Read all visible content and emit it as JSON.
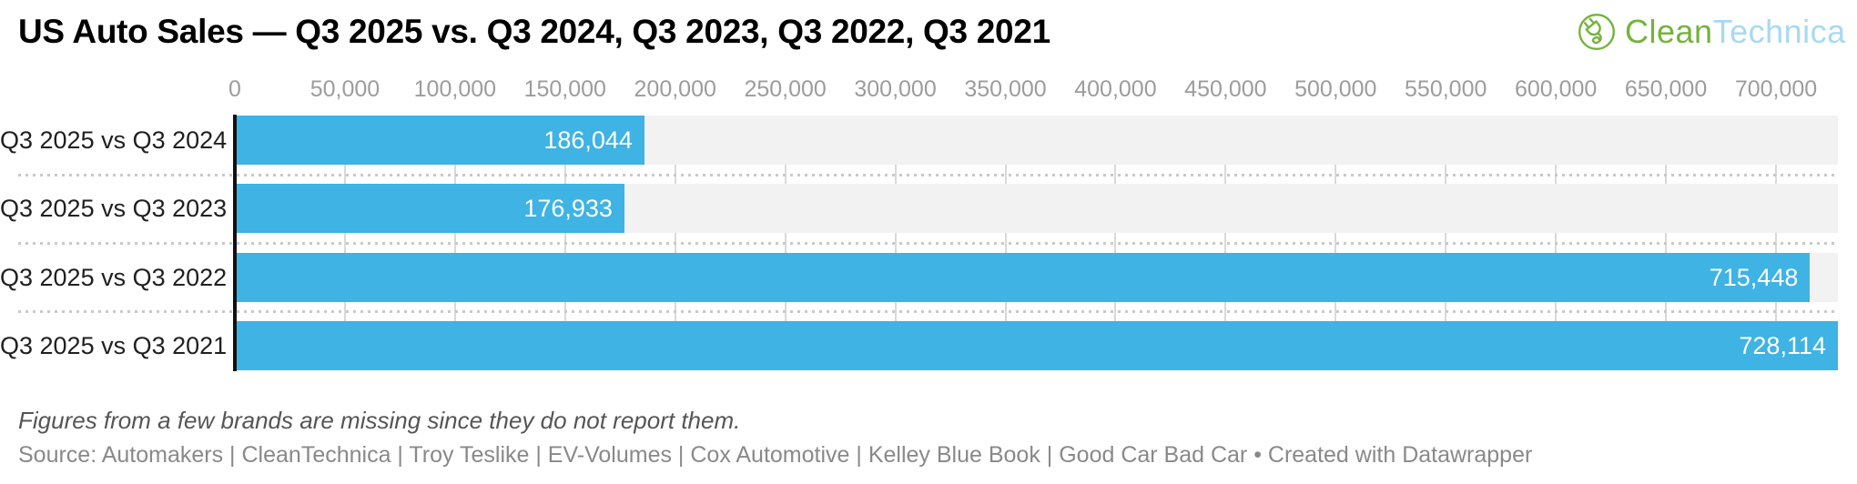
{
  "header": {
    "title": "US Auto Sales — Q3 2025 vs. Q3 2024, Q3 2023, Q3 2022, Q3 2021",
    "logo": {
      "part1": "Clean",
      "part2": "Technica",
      "green": "#74b33c",
      "light_blue": "#a8d9f2"
    }
  },
  "chart_data": {
    "type": "bar",
    "orientation": "horizontal",
    "title": "US Auto Sales — Q3 2025 vs. Q3 2024, Q3 2023, Q3 2022, Q3 2021",
    "categories": [
      "Q3 2025 vs Q3 2024",
      "Q3 2025 vs Q3 2023",
      "Q3 2025 vs Q3 2022",
      "Q3 2025 vs Q3 2021"
    ],
    "values": [
      186044,
      176933,
      715448,
      728114
    ],
    "value_labels": [
      "186,044",
      "176,933",
      "715,448",
      "728,114"
    ],
    "xlim": [
      0,
      728114
    ],
    "ticks": [
      0,
      50000,
      100000,
      150000,
      200000,
      250000,
      300000,
      350000,
      400000,
      450000,
      500000,
      550000,
      600000,
      650000,
      700000
    ],
    "tick_labels": [
      "0",
      "50,000",
      "100,000",
      "150,000",
      "200,000",
      "250,000",
      "300,000",
      "350,000",
      "400,000",
      "450,000",
      "500,000",
      "550,000",
      "600,000",
      "650,000",
      "700,000"
    ],
    "grid": true,
    "legend": "none",
    "bar_color": "#3eb3e4",
    "track_color": "#f2f2f2",
    "gridline_color": "#d9d9d9",
    "value_label_color": "#ffffff"
  },
  "footer": {
    "note": "Figures from a few brands are missing since they do not report them.",
    "source": "Source: Automakers | CleanTechnica | Troy Teslike | EV-Volumes | Cox Automotive | Kelley Blue Book | Good Car Bad Car • Created with Datawrapper"
  }
}
